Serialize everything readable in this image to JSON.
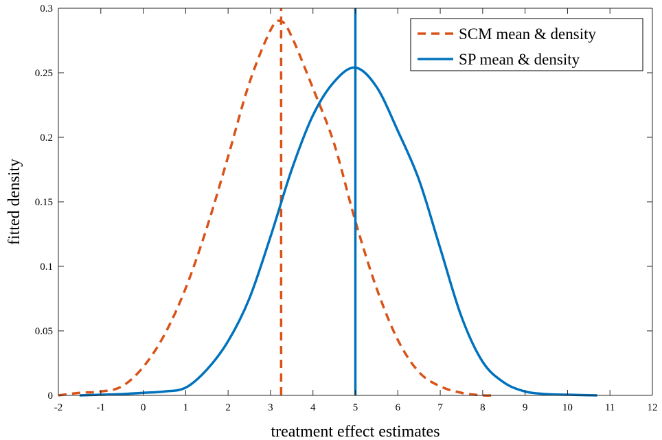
{
  "chart_data": {
    "type": "line",
    "title": "",
    "xlabel": "treatment effect estimates",
    "ylabel": "fitted density",
    "xlim": [
      -2,
      12
    ],
    "ylim": [
      0,
      0.3
    ],
    "xticks": [
      -2,
      -1,
      0,
      1,
      2,
      3,
      4,
      5,
      6,
      7,
      8,
      9,
      10,
      11,
      12
    ],
    "yticks": [
      0,
      0.05,
      0.1,
      0.15,
      0.2,
      0.25,
      0.3
    ],
    "xtick_labels": [
      "-2",
      "-1",
      "0",
      "1",
      "2",
      "3",
      "4",
      "5",
      "6",
      "7",
      "8",
      "9",
      "10",
      "11",
      "12"
    ],
    "ytick_labels": [
      "0",
      "0.05",
      "0.1",
      "0.15",
      "0.2",
      "0.25",
      "0.3"
    ],
    "grid": false,
    "legend_position": "top-right",
    "series": [
      {
        "name": "SCM mean & density",
        "color": "#D95319",
        "style": "dashed",
        "mean": 3.25,
        "x": [
          -2.0,
          -1.5,
          -1.0,
          -0.5,
          0.0,
          0.5,
          1.0,
          1.5,
          2.0,
          2.5,
          3.0,
          3.25,
          3.5,
          4.0,
          4.5,
          5.0,
          5.5,
          6.0,
          6.5,
          7.0,
          7.5,
          8.0,
          8.2
        ],
        "y": [
          0.0,
          0.002,
          0.003,
          0.007,
          0.022,
          0.047,
          0.083,
          0.13,
          0.185,
          0.242,
          0.283,
          0.29,
          0.278,
          0.238,
          0.195,
          0.135,
          0.083,
          0.043,
          0.018,
          0.007,
          0.002,
          0.0,
          0.0
        ]
      },
      {
        "name": "SP mean & density",
        "color": "#0072BD",
        "style": "solid",
        "mean": 5.0,
        "x": [
          -1.5,
          -1.0,
          -0.5,
          0.0,
          0.5,
          1.0,
          1.5,
          2.0,
          2.5,
          3.0,
          3.5,
          4.0,
          4.5,
          5.0,
          5.5,
          6.0,
          6.5,
          7.0,
          7.5,
          8.0,
          8.5,
          9.0,
          9.5,
          10.0,
          10.7
        ],
        "y": [
          0.0,
          0.0005,
          0.001,
          0.002,
          0.003,
          0.006,
          0.02,
          0.042,
          0.075,
          0.123,
          0.175,
          0.217,
          0.243,
          0.254,
          0.239,
          0.205,
          0.167,
          0.114,
          0.061,
          0.026,
          0.01,
          0.003,
          0.001,
          0.0005,
          0.0
        ]
      }
    ]
  }
}
